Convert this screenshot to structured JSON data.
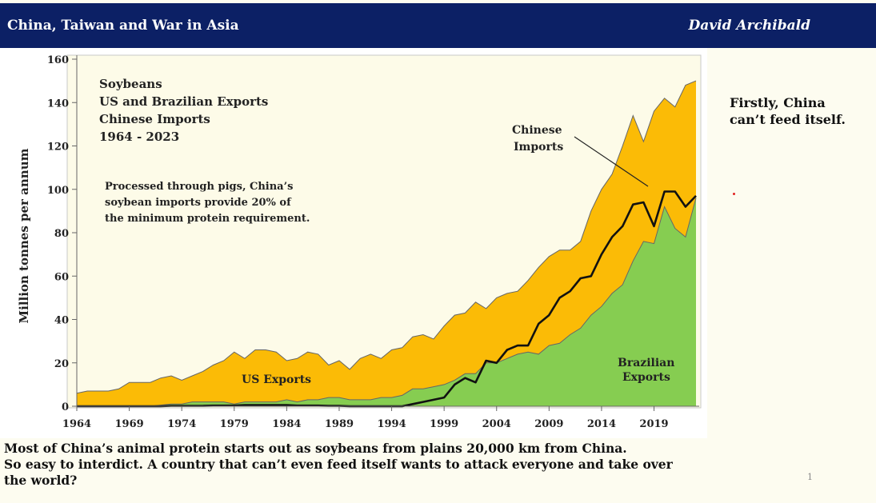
{
  "header": {
    "title": "China, Taiwan and War in Asia",
    "author": "David Archibald",
    "background": "#0c2065"
  },
  "side_note": {
    "line1": "Firstly, China",
    "line2": "can’t feed itself."
  },
  "caption": {
    "line1": "Most of China’s animal protein starts out as soybeans from plains 20,000 km from China.",
    "line2": "So easy to interdict. A country that can’t even feed itself wants to attack everyone and take over",
    "line3": "the world?"
  },
  "page_mark": "1",
  "chart_data": {
    "type": "area",
    "title_lines": [
      "Soybeans",
      "US and Brazilian Exports",
      "Chinese Imports",
      "1964 - 2023"
    ],
    "annotation_lines": [
      "Processed through pigs, China’s",
      "soybean imports provide 20% of",
      "the minimum protein requirement."
    ],
    "ylabel": "Million tonnes per annum",
    "xlabel": "",
    "ylim": [
      0,
      160
    ],
    "yticks": [
      0,
      20,
      40,
      60,
      80,
      100,
      120,
      140,
      160
    ],
    "xlim": [
      1964,
      2023
    ],
    "xticks": [
      1964,
      1969,
      1974,
      1979,
      1984,
      1989,
      1994,
      1999,
      2004,
      2009,
      2014,
      2019
    ],
    "legend": "inline labels",
    "colors": {
      "total": "#fbbb06",
      "brazil": "#86cd51",
      "china": "#111111",
      "outline": "#666666"
    },
    "series_labels": {
      "us": "US Exports",
      "brazil_line1": "Brazilian",
      "brazil_line2": "Exports",
      "china_line1": "Chinese",
      "china_line2": "Imports"
    },
    "x": [
      1964,
      1965,
      1966,
      1967,
      1968,
      1969,
      1970,
      1971,
      1972,
      1973,
      1974,
      1975,
      1976,
      1977,
      1978,
      1979,
      1980,
      1981,
      1982,
      1983,
      1984,
      1985,
      1986,
      1987,
      1988,
      1989,
      1990,
      1991,
      1992,
      1993,
      1994,
      1995,
      1996,
      1997,
      1998,
      1999,
      2000,
      2001,
      2002,
      2003,
      2004,
      2005,
      2006,
      2007,
      2008,
      2009,
      2010,
      2011,
      2012,
      2013,
      2014,
      2015,
      2016,
      2017,
      2018,
      2019,
      2020,
      2021,
      2022,
      2023
    ],
    "series": [
      {
        "name": "US + Brazilian Exports (total)",
        "values": [
          6,
          7,
          7,
          7,
          8,
          11,
          11,
          11,
          13,
          14,
          12,
          14,
          16,
          19,
          21,
          25,
          22,
          26,
          26,
          25,
          21,
          22,
          25,
          24,
          19,
          21,
          17,
          22,
          24,
          22,
          26,
          27,
          32,
          33,
          31,
          37,
          42,
          43,
          48,
          45,
          50,
          52,
          53,
          58,
          64,
          69,
          72,
          72,
          76,
          90,
          100,
          107,
          120,
          134,
          122,
          136,
          142,
          138,
          148,
          150
        ]
      },
      {
        "name": "Brazilian Exports",
        "values": [
          0,
          0,
          0,
          0,
          0,
          0,
          0,
          0,
          0.5,
          1,
          1,
          2,
          2,
          2,
          2,
          1,
          2,
          2,
          2,
          2,
          3,
          2,
          3,
          3,
          4,
          4,
          3,
          3,
          3,
          4,
          4,
          5,
          8,
          8,
          9,
          10,
          12,
          15,
          15,
          20,
          20,
          22,
          24,
          25,
          24,
          28,
          29,
          33,
          36,
          42,
          46,
          52,
          56,
          67,
          76,
          75,
          92,
          82,
          78,
          96
        ]
      },
      {
        "name": "Chinese Imports",
        "values": [
          0,
          0,
          0,
          0,
          0,
          0,
          0,
          0,
          0,
          0.2,
          0.2,
          0.2,
          0.2,
          0.3,
          0.3,
          0.3,
          0.5,
          0.5,
          0.5,
          0.5,
          0.5,
          0.3,
          0.3,
          0.3,
          0.2,
          0.2,
          0,
          0,
          0,
          0,
          0,
          0,
          1,
          2,
          3,
          4,
          10,
          13,
          11,
          21,
          20,
          26,
          28,
          28,
          38,
          42,
          50,
          53,
          59,
          60,
          70,
          78,
          83,
          93,
          94,
          83,
          99,
          99,
          92,
          97
        ]
      }
    ]
  }
}
